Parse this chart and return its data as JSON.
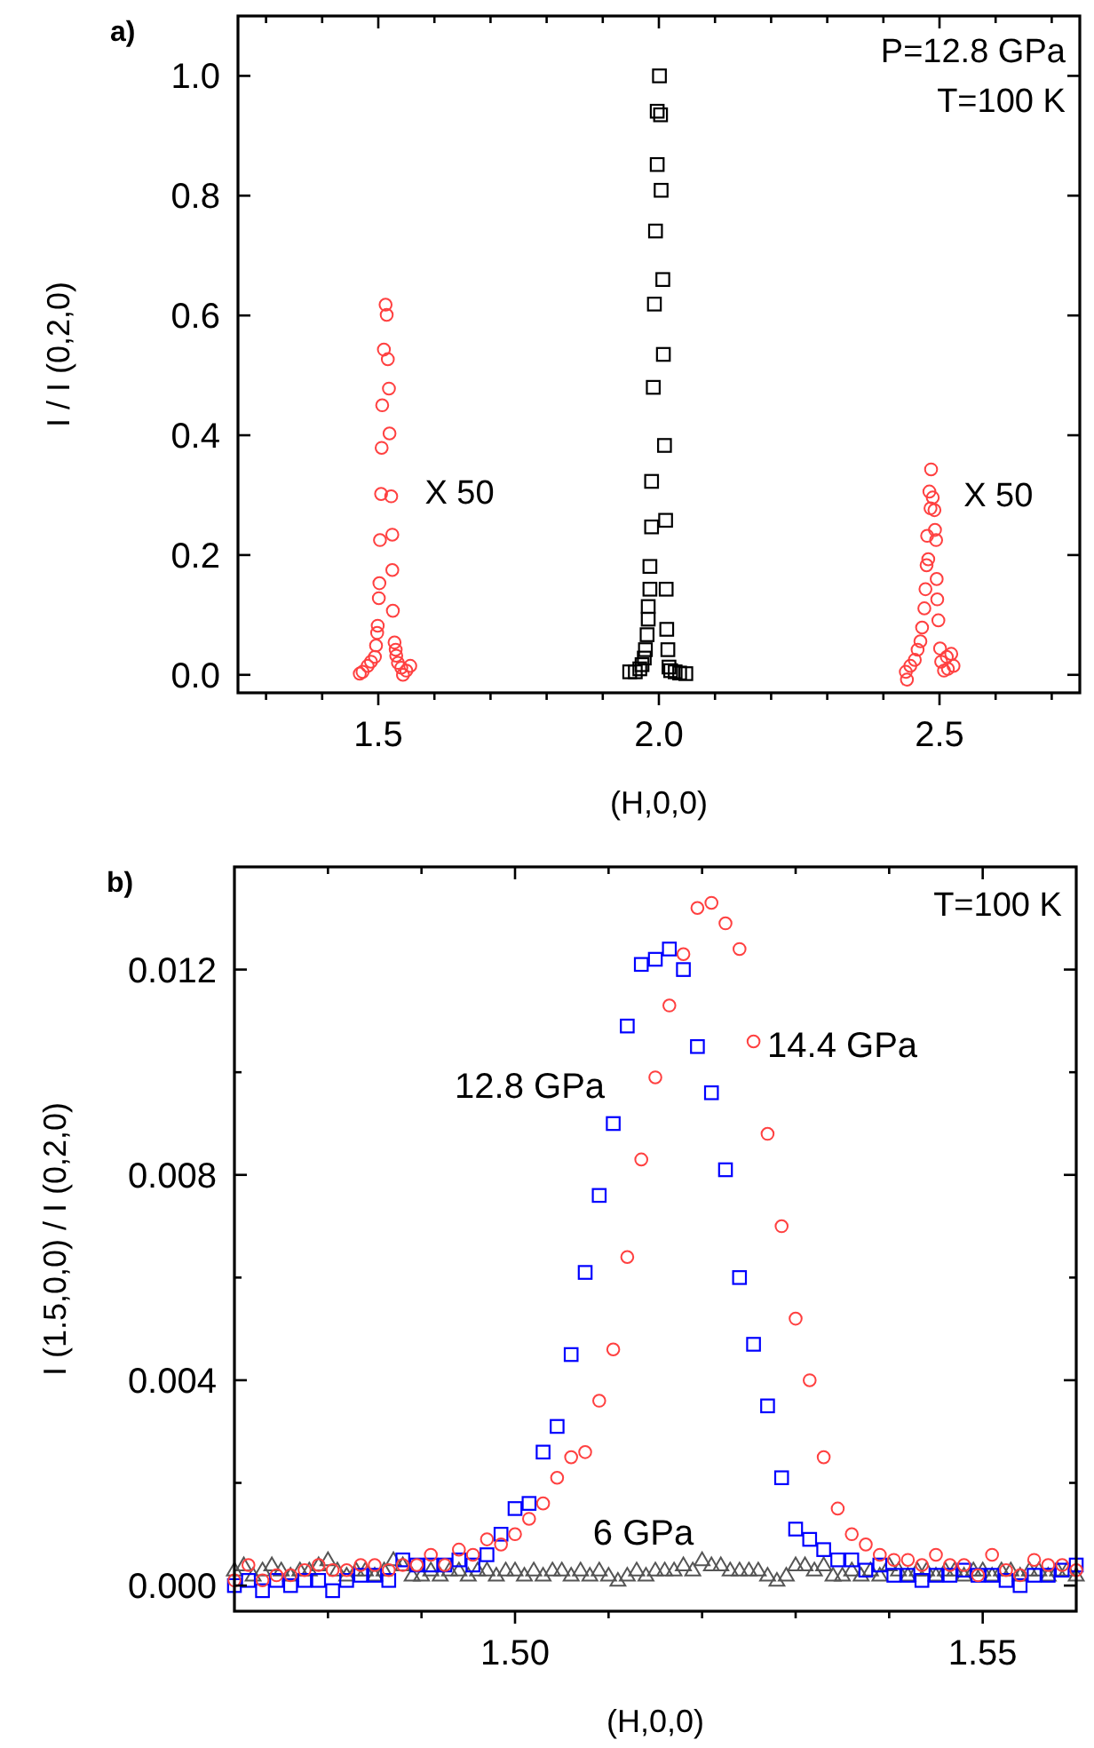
{
  "chart_data": [
    {
      "type": "scatter",
      "title": "a)",
      "xlabel": "(H,0,0)",
      "ylabel": "I / I (0,2,0)",
      "xlim": [
        1.25,
        2.75
      ],
      "ylim": [
        -0.03,
        1.1
      ],
      "xticks": [
        {
          "value": 1.3,
          "label": null
        },
        {
          "value": 1.4,
          "label": null
        },
        {
          "value": 1.5,
          "label": "1.5"
        },
        {
          "value": 1.6,
          "label": null
        },
        {
          "value": 1.7,
          "label": null
        },
        {
          "value": 1.8,
          "label": null
        },
        {
          "value": 1.9,
          "label": null
        },
        {
          "value": 2.0,
          "label": "2.0"
        },
        {
          "value": 2.1,
          "label": null
        },
        {
          "value": 2.2,
          "label": null
        },
        {
          "value": 2.3,
          "label": null
        },
        {
          "value": 2.4,
          "label": null
        },
        {
          "value": 2.5,
          "label": "2.5"
        },
        {
          "value": 2.6,
          "label": null
        },
        {
          "value": 2.7,
          "label": null
        }
      ],
      "yticks": [
        {
          "value": 0,
          "label": "0.0"
        },
        {
          "value": 0.2,
          "label": "0.2"
        },
        {
          "value": 0.4,
          "label": "0.4"
        },
        {
          "value": 0.6,
          "label": "0.6"
        },
        {
          "value": 0.8,
          "label": "0.8"
        },
        {
          "value": 1.0,
          "label": "1.0"
        }
      ],
      "grid": false,
      "annotations": [
        "P=12.8 GPa",
        "T=100 K",
        "X 50",
        "X 50"
      ],
      "series": [
        {
          "color": "#000000",
          "marker": "square",
          "x": [
            2.001,
            1.997,
            2.003,
            1.997,
            2.004,
            1.994,
            2.007,
            1.992,
            2.008,
            1.99,
            2.01,
            1.987,
            2.012,
            1.987,
            1.984,
            1.984,
            2.013,
            1.981,
            1.981,
            2.014,
            1.979,
            2.016,
            1.976,
            1.974,
            1.97,
            1.966,
            1.958,
            1.948,
            2.018,
            2.021,
            2.029,
            2.037,
            2.048
          ],
          "values": [
            1.0,
            0.941,
            0.935,
            0.852,
            0.809,
            0.741,
            0.66,
            0.619,
            0.535,
            0.48,
            0.383,
            0.323,
            0.258,
            0.247,
            0.181,
            0.143,
            0.143,
            0.114,
            0.093,
            0.076,
            0.067,
            0.042,
            0.042,
            0.028,
            0.017,
            0.01,
            0.005,
            0.005,
            0.013,
            0.007,
            0.005,
            0.003,
            0.002
          ]
        },
        {
          "color": "#ff4040",
          "marker": "circle",
          "x": [
            1.513,
            1.515,
            1.51,
            1.517,
            1.519,
            1.507,
            1.52,
            1.506,
            1.505,
            1.523,
            1.503,
            1.525,
            1.525,
            1.502,
            1.501,
            1.526,
            1.499,
            1.498,
            1.496,
            1.529,
            1.531,
            1.532,
            1.494,
            1.487,
            1.481,
            1.472,
            1.467,
            1.535,
            1.541,
            1.55,
            1.557,
            1.544,
            2.485,
            2.482,
            2.488,
            2.484,
            2.491,
            2.492,
            2.478,
            2.494,
            2.48,
            2.477,
            2.495,
            2.475,
            2.496,
            2.473,
            2.498,
            2.469,
            2.466,
            2.501,
            2.461,
            2.456,
            2.448,
            2.44,
            2.442,
            2.503,
            2.513,
            2.521,
            2.525,
            2.515,
            2.508
          ],
          "values": [
            0.618,
            0.601,
            0.543,
            0.527,
            0.478,
            0.45,
            0.403,
            0.379,
            0.302,
            0.298,
            0.225,
            0.234,
            0.175,
            0.153,
            0.128,
            0.107,
            0.082,
            0.07,
            0.049,
            0.054,
            0.042,
            0.032,
            0.03,
            0.022,
            0.015,
            0.005,
            0.002,
            0.02,
            0.012,
            0.007,
            0.015,
            0.0,
            0.343,
            0.306,
            0.296,
            0.278,
            0.275,
            0.242,
            0.232,
            0.225,
            0.193,
            0.183,
            0.16,
            0.143,
            0.126,
            0.111,
            0.091,
            0.079,
            0.056,
            0.044,
            0.042,
            0.025,
            0.015,
            0.005,
            -0.008,
            0.022,
            0.03,
            0.035,
            0.015,
            0.01,
            0.007
          ]
        }
      ]
    },
    {
      "type": "scatter",
      "title": "b)",
      "xlabel": "(H,0,0)",
      "ylabel": "I (1.5,0,0) / I (0,2,0)",
      "xlim": [
        1.47,
        1.56
      ],
      "ylim": [
        -0.0005,
        0.014
      ],
      "xticks": [
        {
          "value": 1.48,
          "label": null
        },
        {
          "value": 1.49,
          "label": null
        },
        {
          "value": 1.5,
          "label": "1.50"
        },
        {
          "value": 1.51,
          "label": null
        },
        {
          "value": 1.52,
          "label": null
        },
        {
          "value": 1.53,
          "label": null
        },
        {
          "value": 1.54,
          "label": null
        },
        {
          "value": 1.55,
          "label": "1.55"
        }
      ],
      "yticks": [
        {
          "value": 0,
          "label": "0.000"
        },
        {
          "value": 0.002,
          "label": null
        },
        {
          "value": 0.004,
          "label": "0.004"
        },
        {
          "value": 0.006,
          "label": null
        },
        {
          "value": 0.008,
          "label": "0.008"
        },
        {
          "value": 0.01,
          "label": null
        },
        {
          "value": 0.012,
          "label": "0.012"
        }
      ],
      "grid": false,
      "annotations": [
        "T=100 K"
      ],
      "x": [
        1.47,
        1.4715,
        1.473,
        1.4745,
        1.476,
        1.4775,
        1.479,
        1.4805,
        1.482,
        1.4835,
        1.485,
        1.4865,
        1.488,
        1.4895,
        1.491,
        1.4925,
        1.494,
        1.4955,
        1.497,
        1.4985,
        1.5,
        1.5015,
        1.503,
        1.5045,
        1.506,
        1.5075,
        1.509,
        1.5105,
        1.512,
        1.5135,
        1.515,
        1.5165,
        1.518,
        1.5195,
        1.521,
        1.5225,
        1.524,
        1.5255,
        1.527,
        1.5285,
        1.53,
        1.5315,
        1.533,
        1.5345,
        1.536,
        1.5375,
        1.539,
        1.5405,
        1.542,
        1.5435,
        1.545,
        1.5465,
        1.548,
        1.5495,
        1.551,
        1.5525,
        1.554,
        1.5555,
        1.557,
        1.5585,
        1.56
      ],
      "series": [
        {
          "name": "6 GPa",
          "color": "#555555",
          "marker": "triangle",
          "x": [
            1.47,
            1.471,
            1.472,
            1.473,
            1.474,
            1.475,
            1.476,
            1.477,
            1.478,
            1.479,
            1.48,
            1.481,
            1.482,
            1.483,
            1.484,
            1.485,
            1.486,
            1.487,
            1.488,
            1.489,
            1.49,
            1.491,
            1.492,
            1.493,
            1.494,
            1.495,
            1.496,
            1.497,
            1.498,
            1.499,
            1.5,
            1.501,
            1.502,
            1.503,
            1.504,
            1.505,
            1.506,
            1.507,
            1.508,
            1.509,
            1.51,
            1.511,
            1.512,
            1.513,
            1.514,
            1.515,
            1.516,
            1.517,
            1.518,
            1.519,
            1.52,
            1.521,
            1.522,
            1.523,
            1.524,
            1.525,
            1.526,
            1.527,
            1.528,
            1.529,
            1.53,
            1.531,
            1.532,
            1.533,
            1.534,
            1.535,
            1.536,
            1.537,
            1.538,
            1.539,
            1.54,
            1.541,
            1.542,
            1.543,
            1.544,
            1.545,
            1.546,
            1.547,
            1.548,
            1.549,
            1.55,
            1.551,
            1.552,
            1.553,
            1.554,
            1.555,
            1.556,
            1.557,
            1.558,
            1.559,
            1.56
          ],
          "values": [
            0.0003,
            0.0004,
            0.0002,
            0.0003,
            0.0004,
            0.0003,
            0.0002,
            0.0003,
            0.0003,
            0.0004,
            0.0005,
            0.0003,
            0.0002,
            0.0003,
            0.0003,
            0.0002,
            0.0003,
            0.0005,
            0.0004,
            0.0002,
            0.0002,
            0.0003,
            0.0002,
            0.0003,
            0.0003,
            0.0002,
            0.0003,
            0.0003,
            0.0002,
            0.0003,
            0.0003,
            0.0002,
            0.0003,
            0.0002,
            0.0003,
            0.0003,
            0.0002,
            0.0003,
            0.0002,
            0.0003,
            0.0002,
            0.0001,
            0.0002,
            0.0003,
            0.0002,
            0.0003,
            0.0003,
            0.0003,
            0.0004,
            0.0003,
            0.0005,
            0.0004,
            0.0004,
            0.0003,
            0.0003,
            0.0003,
            0.0003,
            0.0002,
            0.0001,
            0.0002,
            0.0004,
            0.0004,
            0.0003,
            0.0004,
            0.0002,
            0.0002,
            0.0003,
            0.0002,
            0.0003,
            0.0002,
            0.0004,
            0.0003,
            0.0002,
            0.0003,
            0.0003,
            0.0002,
            0.0003,
            0.0003,
            0.0002,
            0.0003,
            0.0003,
            0.0002,
            0.0003,
            0.0003,
            0.0002,
            0.0003,
            0.0003,
            0.0002,
            0.0003,
            0.0003,
            0.0002
          ]
        },
        {
          "name": "12.8 GPa",
          "color": "#0000ff",
          "marker": "square",
          "values": [
            0,
            0.0001,
            -0.0001,
            0.0001,
            0,
            0.0001,
            0.0001,
            -0.0001,
            0.0001,
            0.0002,
            0.0002,
            0.0001,
            0.0005,
            0.0004,
            0.0004,
            0.0004,
            0.0005,
            0.0004,
            0.0006,
            0.001,
            0.0015,
            0.0016,
            0.0026,
            0.0031,
            0.0045,
            0.0061,
            0.0076,
            0.009,
            0.0109,
            0.0121,
            0.0122,
            0.0124,
            0.012,
            0.0105,
            0.0096,
            0.0081,
            0.006,
            0.0047,
            0.0035,
            0.0021,
            0.0011,
            0.0009,
            0.0007,
            0.0005,
            0.0005,
            0.0003,
            0.0004,
            0.0002,
            0.0002,
            0.0001,
            0.0002,
            0.0002,
            0.0003,
            0.0002,
            0.0002,
            0.0001,
            0,
            0.0002,
            0.0002,
            0.0003,
            0.0004
          ]
        },
        {
          "name": "14.4 GPa",
          "color": "#ff4040",
          "marker": "circle",
          "values": [
            0.0001,
            0.0004,
            0.0001,
            0.0002,
            0.0002,
            0.0003,
            0.0004,
            0.0003,
            0.0003,
            0.0004,
            0.0004,
            0.0003,
            0.0004,
            0.0004,
            0.0006,
            0.0004,
            0.0007,
            0.0006,
            0.0009,
            0.0008,
            0.001,
            0.0013,
            0.0016,
            0.0021,
            0.0025,
            0.0026,
            0.0036,
            0.0046,
            0.0064,
            0.0083,
            0.0099,
            0.0113,
            0.0123,
            0.0132,
            0.0133,
            0.0129,
            0.0124,
            0.0106,
            0.0088,
            0.007,
            0.0052,
            0.004,
            0.0025,
            0.0015,
            0.001,
            0.0008,
            0.0006,
            0.0005,
            0.0005,
            0.0004,
            0.0006,
            0.0004,
            0.0004,
            0.0002,
            0.0006,
            0.0003,
            0.0002,
            0.0005,
            0.0004,
            0.0004,
            0.0003
          ]
        }
      ]
    }
  ]
}
